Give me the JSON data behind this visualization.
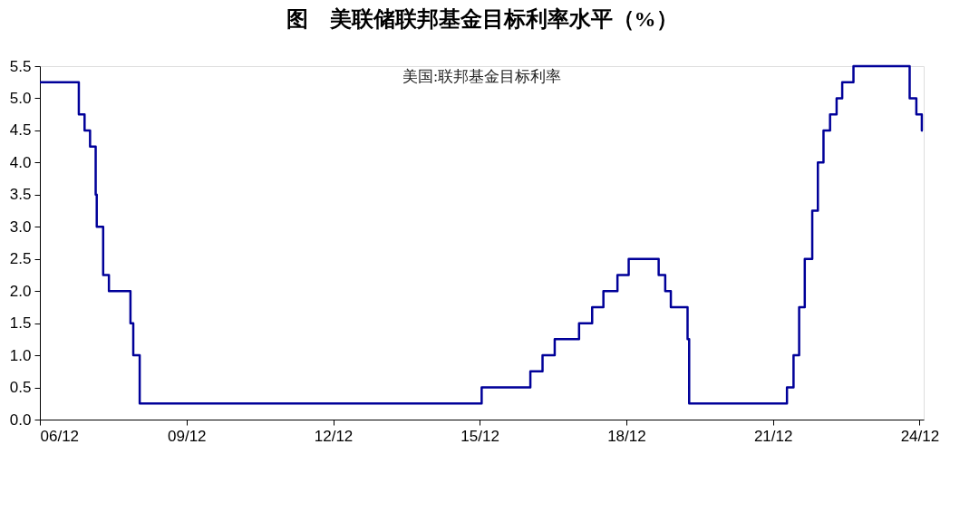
{
  "chart_data": {
    "type": "step",
    "title": "图　美联储联邦基金目标利率水平（%）",
    "legend": "top",
    "grid": false,
    "line_style": "solid",
    "marker": "none",
    "xlim": [
      "2006-12-01",
      "2025-01-01"
    ],
    "xticks": [
      {
        "value": "2006-12-01",
        "label": "06/12"
      },
      {
        "value": "2009-12-01",
        "label": "09/12"
      },
      {
        "value": "2012-12-01",
        "label": "12/12"
      },
      {
        "value": "2015-12-01",
        "label": "15/12"
      },
      {
        "value": "2018-12-01",
        "label": "18/12"
      },
      {
        "value": "2021-12-01",
        "label": "21/12"
      },
      {
        "value": "2024-12-01",
        "label": "24/12"
      }
    ],
    "ylim": [
      0,
      5.5
    ],
    "yticks": [
      {
        "value": 0,
        "label": "0.0"
      },
      {
        "value": 0.5,
        "label": "0.5"
      },
      {
        "value": 1,
        "label": "1.0"
      },
      {
        "value": 1.5,
        "label": "1.5"
      },
      {
        "value": 2,
        "label": "2.0"
      },
      {
        "value": 2.5,
        "label": "2.5"
      },
      {
        "value": 3,
        "label": "3.0"
      },
      {
        "value": 3.5,
        "label": "3.5"
      },
      {
        "value": 4,
        "label": "4.0"
      },
      {
        "value": 4.5,
        "label": "4.5"
      },
      {
        "value": 5,
        "label": "5.0"
      },
      {
        "value": 5.5,
        "label": "5.5"
      }
    ],
    "series": [
      {
        "name": "美国:联邦基金目标利率",
        "color": "#000099",
        "x": [
          "2006-12-01",
          "2007-09-18",
          "2007-10-31",
          "2007-12-11",
          "2008-01-22",
          "2008-01-30",
          "2008-03-18",
          "2008-04-30",
          "2008-10-08",
          "2008-10-29",
          "2008-12-16",
          "2015-12-16",
          "2016-12-14",
          "2017-03-15",
          "2017-06-14",
          "2017-12-13",
          "2018-03-21",
          "2018-06-13",
          "2018-09-26",
          "2018-12-19",
          "2019-07-31",
          "2019-09-18",
          "2019-10-30",
          "2020-03-03",
          "2020-03-15",
          "2022-03-16",
          "2022-05-04",
          "2022-06-15",
          "2022-07-27",
          "2022-09-21",
          "2022-11-02",
          "2022-12-14",
          "2023-02-01",
          "2023-03-22",
          "2023-05-03",
          "2023-07-26",
          "2024-09-18",
          "2024-11-07",
          "2024-12-18",
          "2024-12-25"
        ],
        "values": [
          5.25,
          4.75,
          4.5,
          4.25,
          3.5,
          3.0,
          2.25,
          2.0,
          1.5,
          1.0,
          0.25,
          0.5,
          0.75,
          1.0,
          1.25,
          1.5,
          1.75,
          2.0,
          2.25,
          2.5,
          2.25,
          2.0,
          1.75,
          1.25,
          0.25,
          0.5,
          1.0,
          1.75,
          2.5,
          3.25,
          4.0,
          4.5,
          4.75,
          5.0,
          5.25,
          5.5,
          5.0,
          4.75,
          4.5,
          4.5
        ]
      }
    ]
  }
}
